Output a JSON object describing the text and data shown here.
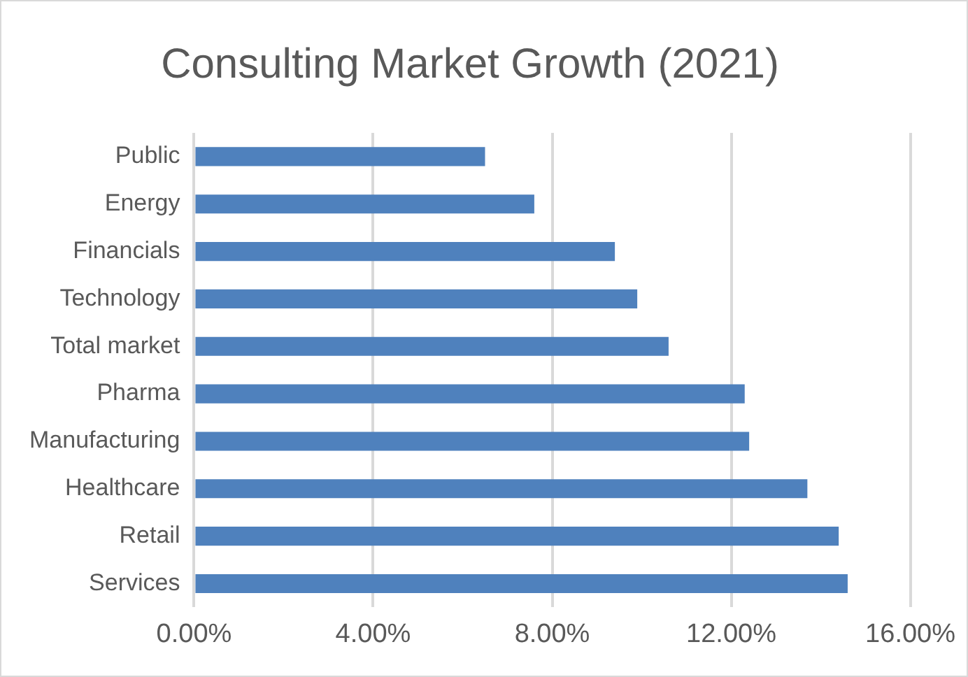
{
  "chart_data": {
    "type": "bar",
    "orientation": "horizontal",
    "title": "Consulting Market Growth (2021)",
    "categories": [
      "Public",
      "Energy",
      "Financials",
      "Technology",
      "Total market",
      "Pharma",
      "Manufacturing",
      "Healthcare",
      "Retail",
      "Services"
    ],
    "values": [
      6.5,
      7.6,
      9.4,
      9.9,
      10.6,
      12.3,
      12.4,
      13.7,
      14.4,
      14.6
    ],
    "color": "#4f81bd",
    "xlim": [
      0,
      16
    ],
    "xticks": [
      {
        "value": 0,
        "label": "0.00%"
      },
      {
        "value": 4,
        "label": "4.00%"
      },
      {
        "value": 8,
        "label": "8.00%"
      },
      {
        "value": 12,
        "label": "12.00%"
      },
      {
        "value": 16,
        "label": "16.00%"
      }
    ],
    "grid": "x",
    "legend": false
  }
}
